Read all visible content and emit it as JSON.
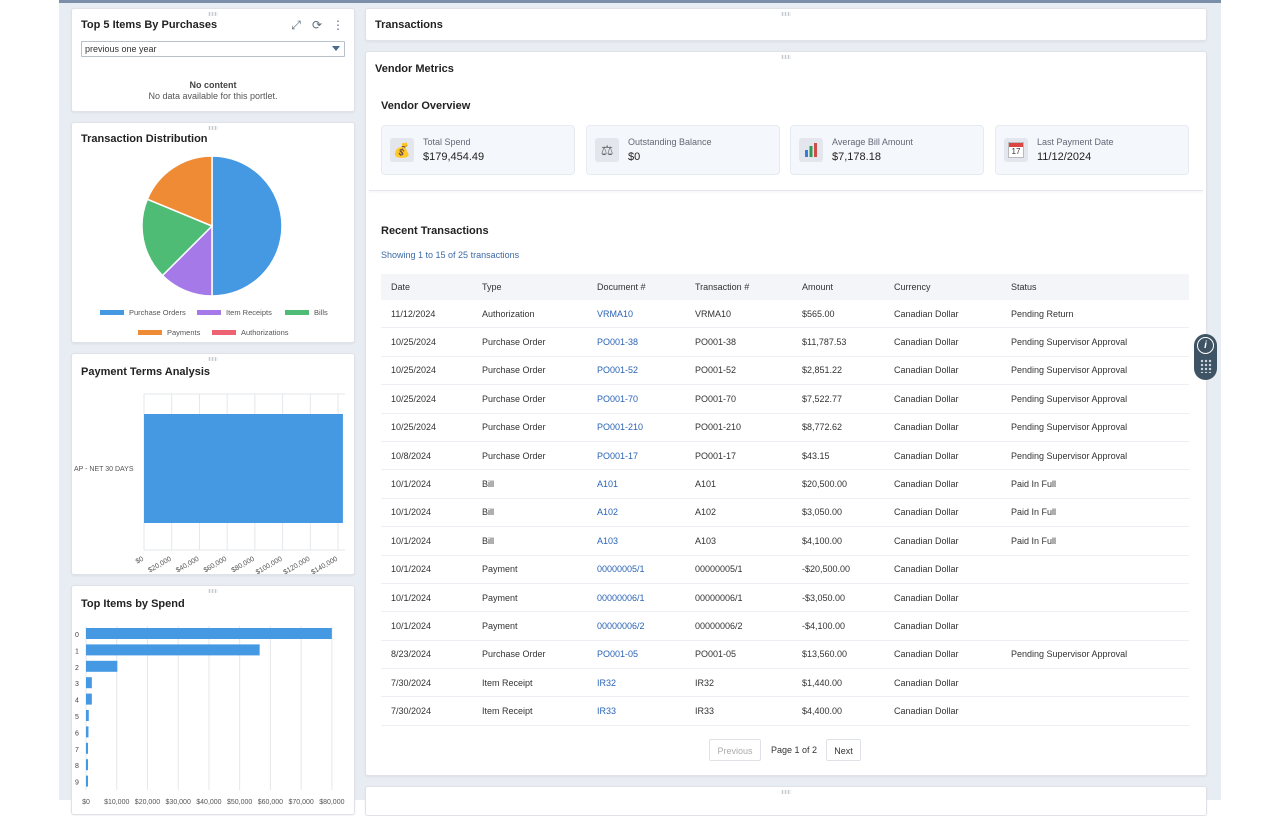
{
  "top5": {
    "title": "Top 5 Items By Purchases",
    "range": "previous one year",
    "empty_title": "No content",
    "empty_msg": "No data available for this portlet."
  },
  "distribution": {
    "title": "Transaction Distribution",
    "legend": [
      "Purchase Orders",
      "Item Receipts",
      "Bills",
      "Payments",
      "Authorizations"
    ]
  },
  "terms": {
    "title": "Payment Terms Analysis",
    "category": "AP - NET 30 DAYS",
    "ticks": [
      "$0",
      "$20,000",
      "$40,000",
      "$60,000",
      "$80,000",
      "$100,000",
      "$120,000",
      "$140,000"
    ]
  },
  "spend": {
    "title": "Top Items by Spend",
    "ticks": [
      "$0",
      "$10,000",
      "$20,000",
      "$30,000",
      "$40,000",
      "$50,000",
      "$60,000",
      "$70,000",
      "$80,000"
    ]
  },
  "chart_data": [
    {
      "type": "pie",
      "title": "Transaction Distribution",
      "labels": [
        "Purchase Orders",
        "Item Receipts",
        "Bills",
        "Payments",
        "Authorizations"
      ],
      "values": [
        8,
        2,
        3,
        3,
        0
      ],
      "colors": [
        "#4599e3",
        "#a57ae8",
        "#4ebc75",
        "#ef8b34",
        "#ee6371"
      ]
    },
    {
      "type": "bar",
      "orientation": "horizontal",
      "title": "Payment Terms Analysis",
      "categories": [
        "AP - NET 30 DAYS"
      ],
      "values": [
        143500
      ],
      "xlim": [
        0,
        145000
      ]
    },
    {
      "type": "bar",
      "orientation": "horizontal",
      "title": "Top Items by Spend",
      "categories": [
        "0",
        "1",
        "2",
        "3",
        "4",
        "5",
        "6",
        "7",
        "8",
        "9"
      ],
      "values": [
        80000,
        56500,
        10200,
        1900,
        1900,
        900,
        800,
        500,
        500,
        400
      ],
      "xlim": [
        0,
        82000
      ]
    }
  ],
  "transactions_header": "Transactions",
  "vendor": {
    "title": "Vendor Metrics",
    "overview": "Vendor Overview",
    "metrics": [
      {
        "label": "Total Spend",
        "value": "$179,454.49",
        "icon": "money-bag-icon"
      },
      {
        "label": "Outstanding Balance",
        "value": "$0",
        "icon": "balance-scale-icon"
      },
      {
        "label": "Average Bill Amount",
        "value": "$7,178.18",
        "icon": "bar-chart-icon"
      },
      {
        "label": "Last Payment Date",
        "value": "11/12/2024",
        "icon": "calendar-icon"
      }
    ],
    "calendar_day": "17"
  },
  "recent": {
    "title": "Recent Transactions",
    "showing": "Showing 1 to 15 of 25 transactions",
    "columns": [
      "Date",
      "Type",
      "Document #",
      "Transaction #",
      "Amount",
      "Currency",
      "Status"
    ],
    "rows": [
      [
        "11/12/2024",
        "Authorization",
        "VRMA10",
        "VRMA10",
        "$565.00",
        "Canadian Dollar",
        "Pending Return"
      ],
      [
        "10/25/2024",
        "Purchase Order",
        "PO001-38",
        "PO001-38",
        "$11,787.53",
        "Canadian Dollar",
        "Pending Supervisor Approval"
      ],
      [
        "10/25/2024",
        "Purchase Order",
        "PO001-52",
        "PO001-52",
        "$2,851.22",
        "Canadian Dollar",
        "Pending Supervisor Approval"
      ],
      [
        "10/25/2024",
        "Purchase Order",
        "PO001-70",
        "PO001-70",
        "$7,522.77",
        "Canadian Dollar",
        "Pending Supervisor Approval"
      ],
      [
        "10/25/2024",
        "Purchase Order",
        "PO001-210",
        "PO001-210",
        "$8,772.62",
        "Canadian Dollar",
        "Pending Supervisor Approval"
      ],
      [
        "10/8/2024",
        "Purchase Order",
        "PO001-17",
        "PO001-17",
        "$43.15",
        "Canadian Dollar",
        "Pending Supervisor Approval"
      ],
      [
        "10/1/2024",
        "Bill",
        "A101",
        "A101",
        "$20,500.00",
        "Canadian Dollar",
        "Paid In Full"
      ],
      [
        "10/1/2024",
        "Bill",
        "A102",
        "A102",
        "$3,050.00",
        "Canadian Dollar",
        "Paid In Full"
      ],
      [
        "10/1/2024",
        "Bill",
        "A103",
        "A103",
        "$4,100.00",
        "Canadian Dollar",
        "Paid In Full"
      ],
      [
        "10/1/2024",
        "Payment",
        "00000005/1",
        "00000005/1",
        "-$20,500.00",
        "Canadian Dollar",
        ""
      ],
      [
        "10/1/2024",
        "Payment",
        "00000006/1",
        "00000006/1",
        "-$3,050.00",
        "Canadian Dollar",
        ""
      ],
      [
        "10/1/2024",
        "Payment",
        "00000006/2",
        "00000006/2",
        "-$4,100.00",
        "Canadian Dollar",
        ""
      ],
      [
        "8/23/2024",
        "Purchase Order",
        "PO001-05",
        "PO001-05",
        "$13,560.00",
        "Canadian Dollar",
        "Pending Supervisor Approval"
      ],
      [
        "7/30/2024",
        "Item Receipt",
        "IR32",
        "IR32",
        "$1,440.00",
        "Canadian Dollar",
        ""
      ],
      [
        "7/30/2024",
        "Item Receipt",
        "IR33",
        "IR33",
        "$4,400.00",
        "Canadian Dollar",
        ""
      ]
    ],
    "prev": "Previous",
    "page": "Page 1 of 2",
    "next": "Next"
  },
  "info_label": "i"
}
